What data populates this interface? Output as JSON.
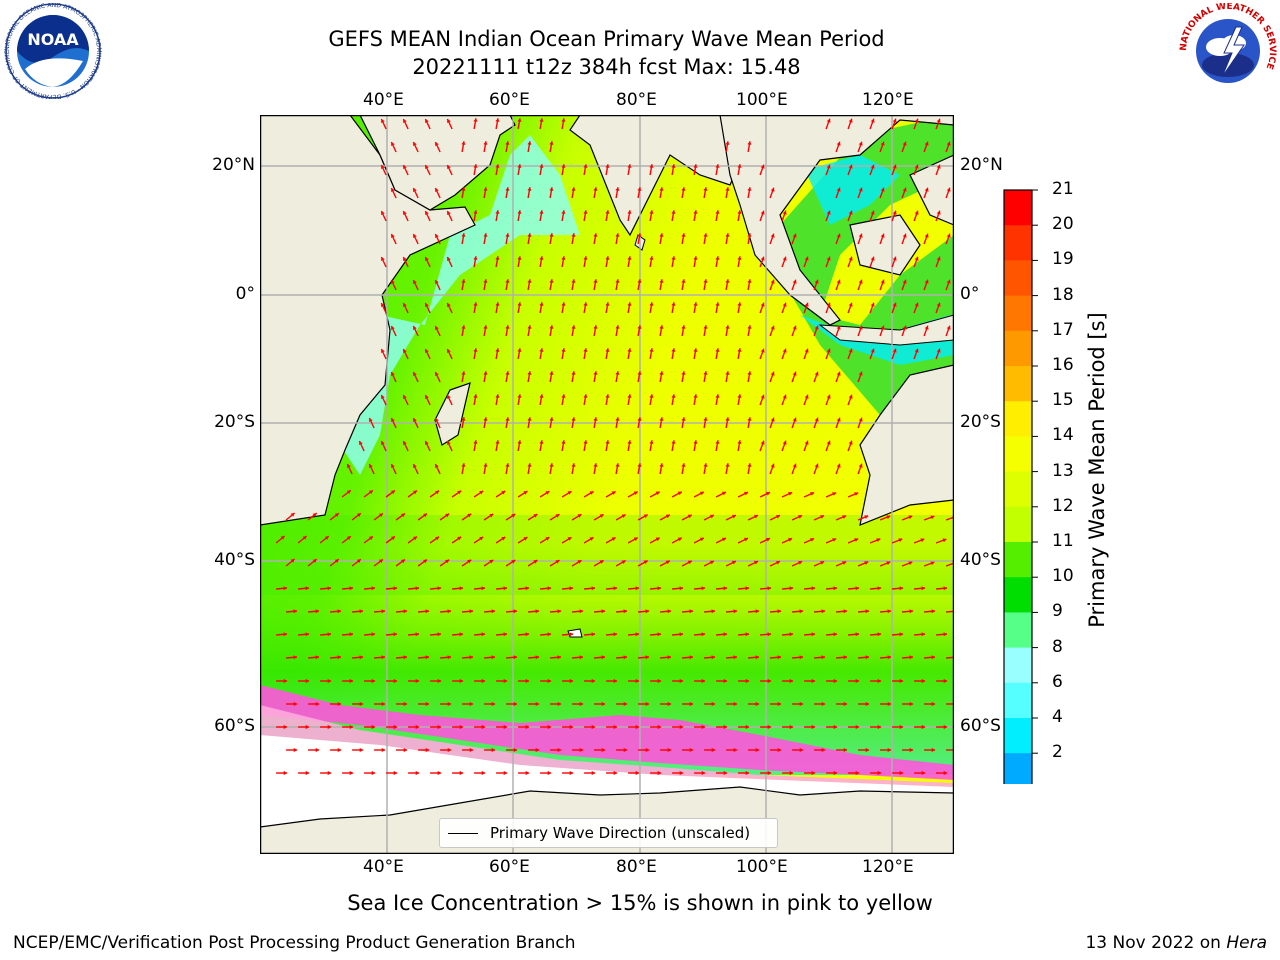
{
  "title": {
    "line1": "GEFS MEAN Indian Ocean Primary Wave Mean Period",
    "line2": "20221111 t12z 384h fcst   Max: 15.48"
  },
  "map": {
    "lon_labels": [
      "40°E",
      "60°E",
      "80°E",
      "100°E",
      "120°E"
    ],
    "lat_labels": [
      "20°N",
      "0°",
      "20°S",
      "40°S",
      "60°S"
    ]
  },
  "legend": {
    "label": "Primary Wave Direction (unscaled)"
  },
  "colorbar": {
    "title": "Primary Wave Mean Period [s]",
    "ticks": [
      "21",
      "20",
      "19",
      "18",
      "17",
      "16",
      "15",
      "14",
      "13",
      "12",
      "11",
      "10",
      "9",
      "8",
      "6",
      "4",
      "2"
    ],
    "colors": [
      "#ff0000",
      "#ff3300",
      "#ff5500",
      "#ff7700",
      "#ff9900",
      "#ffbb00",
      "#ffee00",
      "#f5ff00",
      "#ddff00",
      "#c2ff00",
      "#55ee00",
      "#00dd00",
      "#55ff88",
      "#99ffff",
      "#55ffff",
      "#00eeff",
      "#00aaff",
      "#0066ff"
    ],
    "extend_color": "#0000ff"
  },
  "caption": "Sea Ice Concentration > 15% is shown in pink to yellow",
  "footer": {
    "left": "NCEP/EMC/Verification Post Processing Product Generation Branch",
    "right_prefix": "13 Nov 2022 on ",
    "right_host": "Hera"
  },
  "logos": {
    "noaa_text": "NOAA",
    "noaa_ring": "NATIONAL OCEANIC AND ATMOSPHERIC ADMINISTRATION · U.S. DEPARTMENT OF COMMERCE",
    "nws_ring": "NATIONAL WEATHER SERVICE"
  },
  "colors": {
    "land": "#efedde",
    "ice_white": "#ffffff",
    "arrow": "#ff0000",
    "grid": "#b0b0b0"
  }
}
